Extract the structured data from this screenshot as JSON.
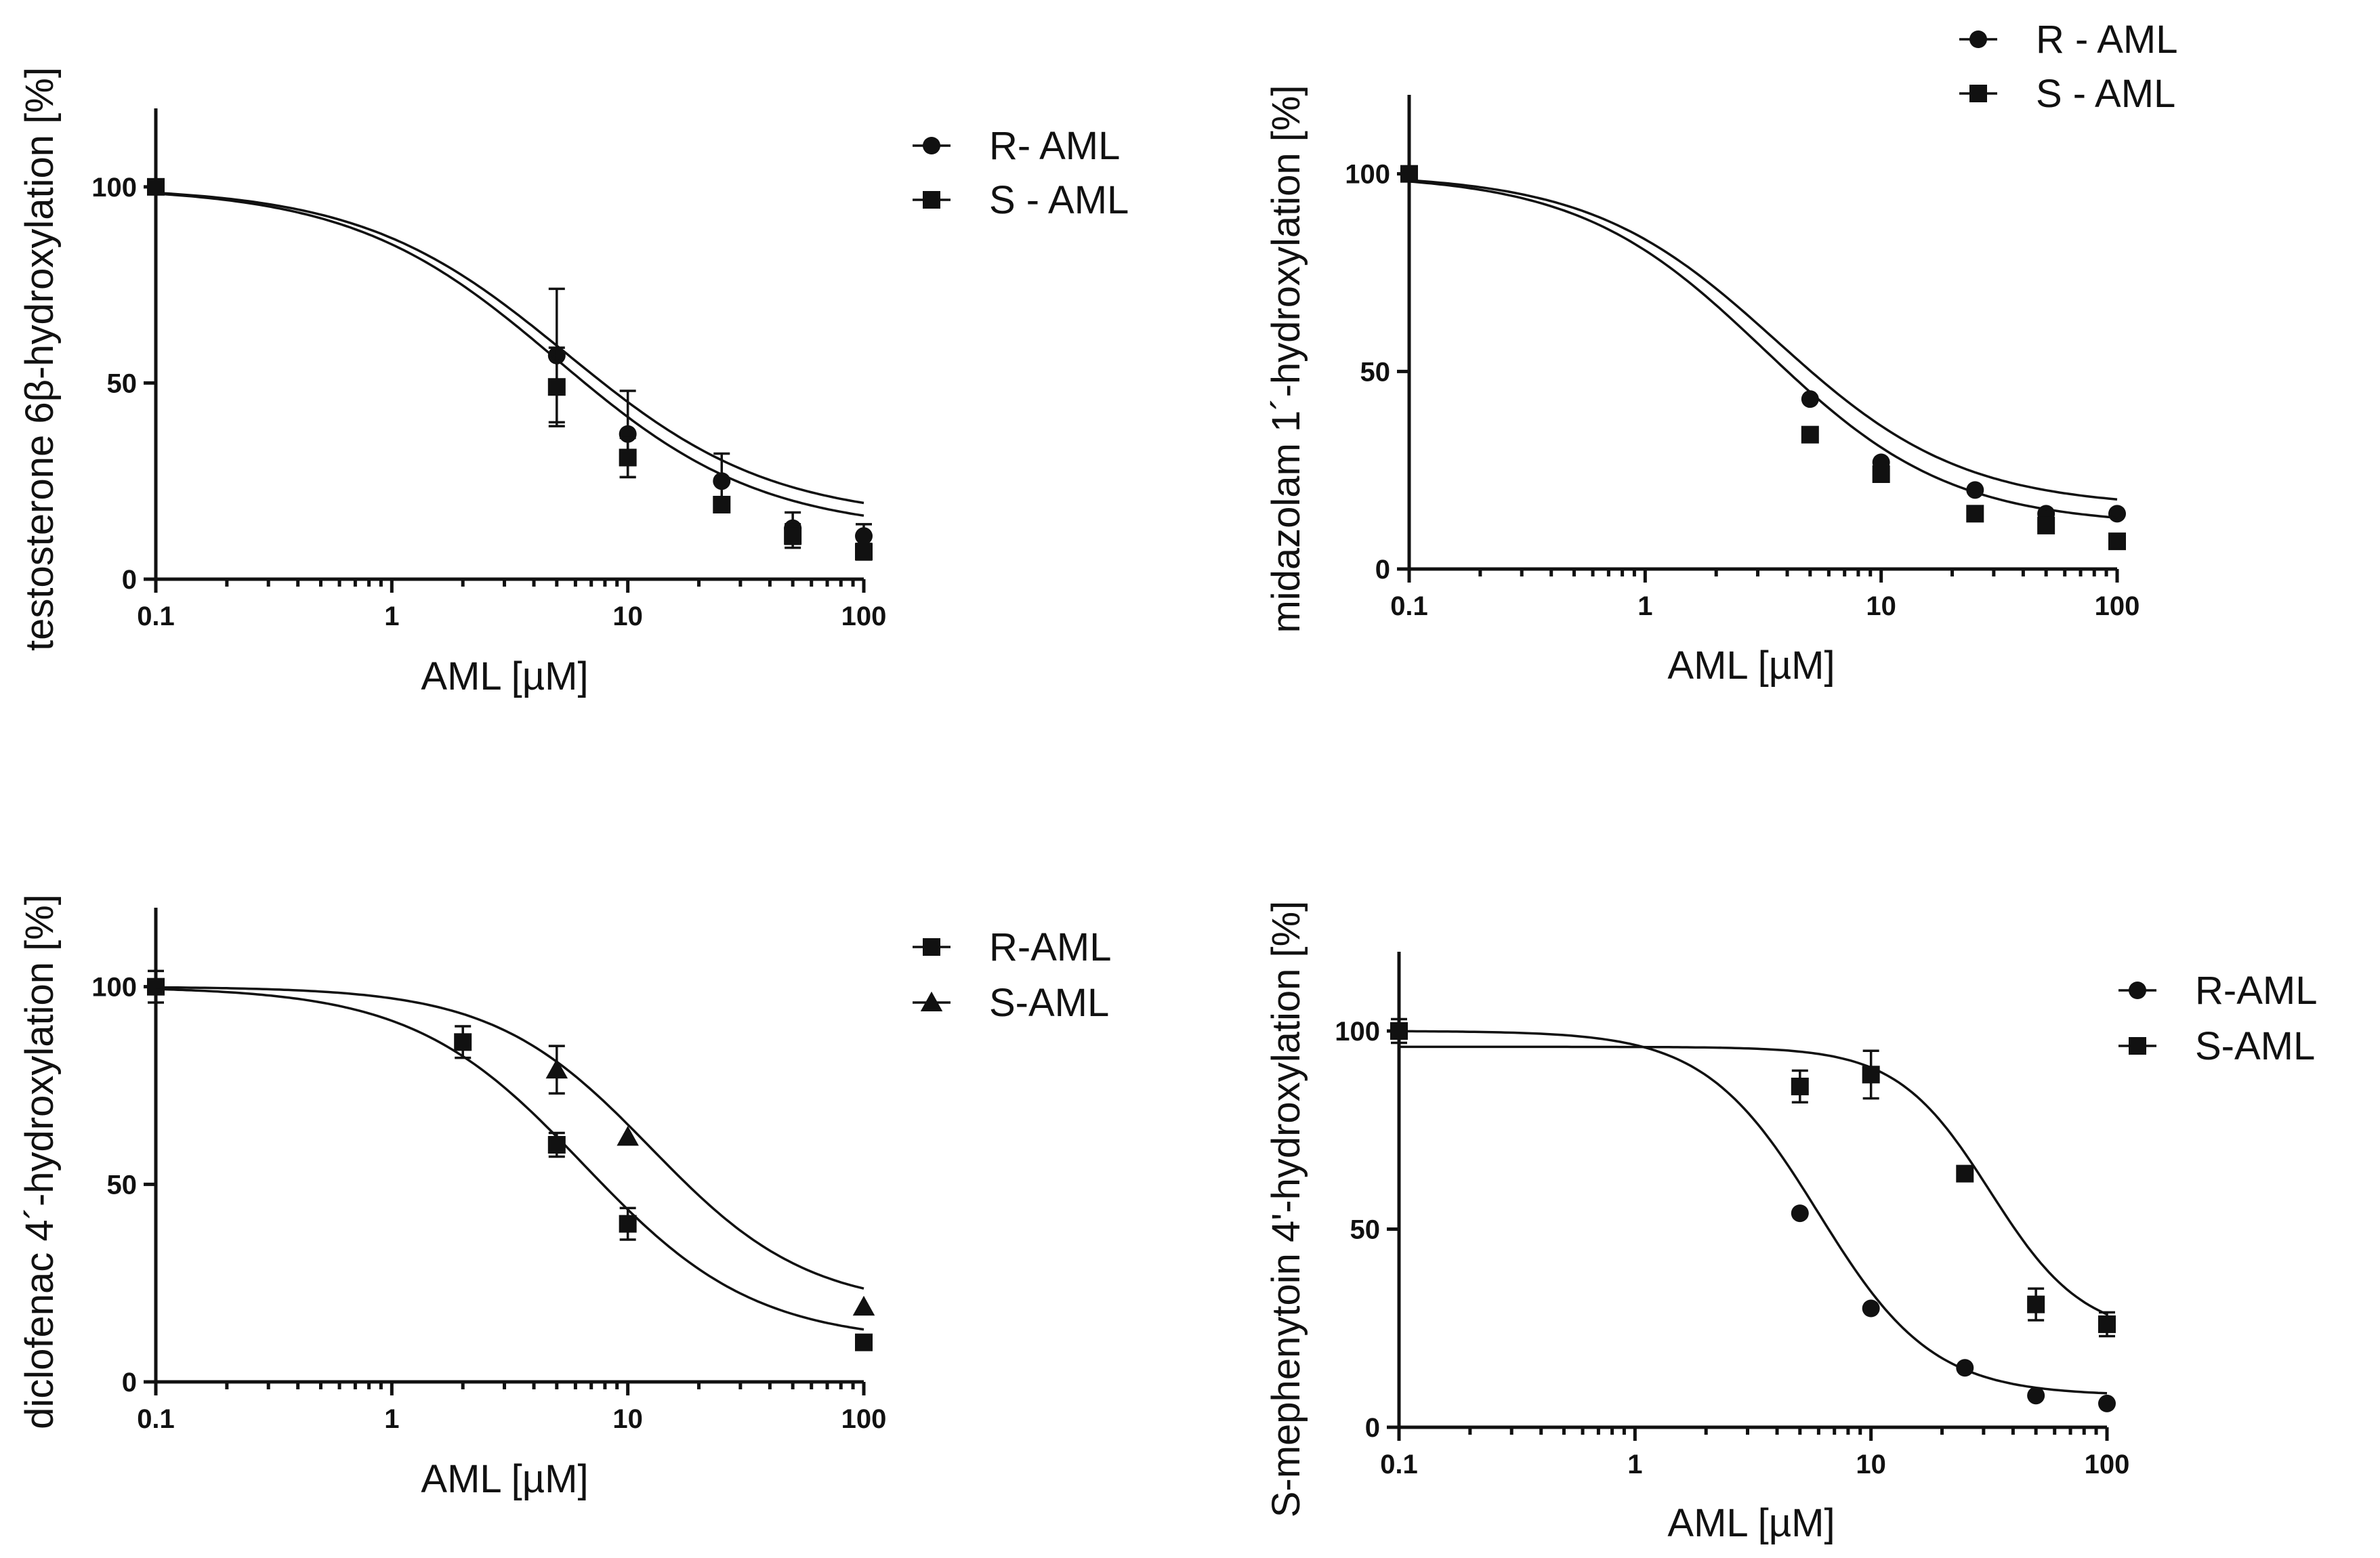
{
  "chart_data": [
    {
      "type": "scatter",
      "id": "p1",
      "ylabel": "testosterone 6β-hydroxylation [%]",
      "xlabel": "AML  [µM]",
      "xscale": "log",
      "xlim": [
        0.1,
        100
      ],
      "ylim": [
        0,
        120
      ],
      "xticks": [
        {
          "v": 0.1,
          "label": "0.1"
        },
        {
          "v": 1,
          "label": "1"
        },
        {
          "v": 10,
          "label": "10"
        },
        {
          "v": 100,
          "label": "100"
        }
      ],
      "yticks": [
        {
          "v": 0,
          "label": "0"
        },
        {
          "v": 50,
          "label": "50"
        },
        {
          "v": 100,
          "label": "100"
        }
      ],
      "legend_position": "top-right",
      "series": [
        {
          "name": "R- AML",
          "marker": "circle",
          "x": [
            0.1,
            5,
            10,
            25,
            50,
            100
          ],
          "y": [
            100,
            57,
            37,
            25,
            13,
            11
          ],
          "err": [
            0,
            17,
            11,
            7,
            4,
            3
          ],
          "fit": {
            "top": 100,
            "bottom": 15,
            "ic50": 5.5,
            "hill": 1.0
          }
        },
        {
          "name": "S - AML",
          "marker": "square",
          "x": [
            0.1,
            5,
            10,
            25,
            50,
            100
          ],
          "y": [
            100,
            49,
            31,
            19,
            11,
            7
          ],
          "err": [
            0,
            10,
            5,
            0,
            3,
            2
          ],
          "fit": {
            "top": 100,
            "bottom": 12,
            "ic50": 5.0,
            "hill": 1.0
          }
        }
      ]
    },
    {
      "type": "scatter",
      "id": "p2",
      "ylabel": "midazolam 1´-hydroxylation [%]",
      "xlabel": "AML  [µM]",
      "xscale": "log",
      "xlim": [
        0.1,
        100
      ],
      "ylim": [
        0,
        120
      ],
      "xticks": [
        {
          "v": 0.1,
          "label": "0.1"
        },
        {
          "v": 1,
          "label": "1"
        },
        {
          "v": 10,
          "label": "10"
        },
        {
          "v": 100,
          "label": "100"
        }
      ],
      "yticks": [
        {
          "v": 0,
          "label": "0"
        },
        {
          "v": 50,
          "label": "50"
        },
        {
          "v": 100,
          "label": "100"
        }
      ],
      "legend_position": "top-right",
      "series": [
        {
          "name": "R - AML",
          "marker": "circle",
          "x": [
            0.1,
            5,
            10,
            25,
            50,
            100
          ],
          "y": [
            100,
            43,
            27,
            20,
            14,
            14
          ],
          "err": [
            0,
            0,
            0,
            0,
            0,
            0
          ],
          "fit": {
            "top": 100,
            "bottom": 15.5,
            "ic50": 3.6,
            "hill": 1.1
          }
        },
        {
          "name": "S - AML",
          "marker": "square",
          "x": [
            0.1,
            5,
            10,
            25,
            50,
            100
          ],
          "y": [
            100,
            34,
            24,
            14,
            11,
            7
          ],
          "err": [
            0,
            0,
            0,
            0,
            0,
            0
          ],
          "fit": {
            "top": 100,
            "bottom": 11,
            "ic50": 3.2,
            "hill": 1.1
          }
        }
      ]
    },
    {
      "type": "scatter",
      "id": "p3",
      "ylabel": "diclofenac 4´-hydroxylation [%]",
      "xlabel": "AML  [µM]",
      "xscale": "log",
      "xlim": [
        0.1,
        100
      ],
      "ylim": [
        0,
        120
      ],
      "xticks": [
        {
          "v": 0.1,
          "label": "0.1"
        },
        {
          "v": 1,
          "label": "1"
        },
        {
          "v": 10,
          "label": "10"
        },
        {
          "v": 100,
          "label": "100"
        }
      ],
      "yticks": [
        {
          "v": 0,
          "label": "0"
        },
        {
          "v": 50,
          "label": "50"
        },
        {
          "v": 100,
          "label": "100"
        }
      ],
      "legend_position": "top-right",
      "series": [
        {
          "name": "R-AML",
          "marker": "square",
          "x": [
            0.1,
            2,
            5,
            10,
            100
          ],
          "y": [
            100,
            86,
            60,
            40,
            10
          ],
          "err": [
            4,
            4,
            3,
            4,
            0
          ],
          "fit": {
            "top": 100,
            "bottom": 10,
            "ic50": 6.5,
            "hill": 1.2
          }
        },
        {
          "name": "S-AML",
          "marker": "triangle",
          "x": [
            5,
            10,
            100
          ],
          "y": [
            79,
            62,
            19
          ],
          "err": [
            6,
            0,
            0
          ],
          "fit": {
            "top": 100,
            "bottom": 18.5,
            "ic50": 12.5,
            "hill": 1.3
          }
        }
      ]
    },
    {
      "type": "scatter",
      "id": "p4",
      "ylabel": "S-mephenytoin 4'-hydroxylation [%]",
      "xlabel": "AML  [µM]",
      "xscale": "log",
      "xlim": [
        0.1,
        100
      ],
      "ylim": [
        0,
        120
      ],
      "xticks": [
        {
          "v": 0.1,
          "label": "0.1"
        },
        {
          "v": 1,
          "label": "1"
        },
        {
          "v": 10,
          "label": "10"
        },
        {
          "v": 100,
          "label": "100"
        }
      ],
      "yticks": [
        {
          "v": 0,
          "label": "0"
        },
        {
          "v": 50,
          "label": "50"
        },
        {
          "v": 100,
          "label": "100"
        }
      ],
      "legend_position": "top-right",
      "series": [
        {
          "name": "R-AML",
          "marker": "circle",
          "x": [
            5,
            10,
            25,
            50,
            100
          ],
          "y": [
            54,
            30,
            15,
            8,
            6
          ],
          "err": [
            0,
            0,
            0,
            0,
            0
          ],
          "fit": {
            "top": 100,
            "bottom": 8,
            "ic50": 6.0,
            "hill": 1.8
          }
        },
        {
          "name": "S-AML",
          "marker": "square",
          "x": [
            0.1,
            5,
            10,
            25,
            50,
            100
          ],
          "y": [
            100,
            86,
            89,
            64,
            31,
            26
          ],
          "err": [
            3,
            4,
            6,
            0,
            4,
            3
          ],
          "fit": {
            "top": 96,
            "bottom": 23,
            "ic50": 32,
            "hill": 2.2
          }
        }
      ]
    }
  ]
}
